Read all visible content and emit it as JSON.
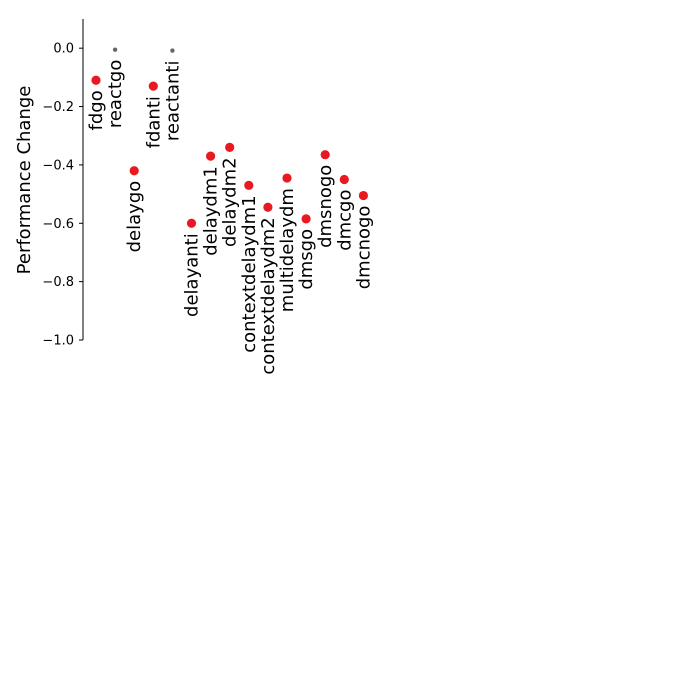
{
  "chart_data": {
    "type": "scatter",
    "title": "",
    "xlabel": "",
    "ylabel": "Performance Change",
    "ylim": [
      -1.0,
      0.1
    ],
    "yticks": [
      0.0,
      -0.2,
      -0.4,
      -0.6,
      -0.8,
      -1.0
    ],
    "ytick_labels": [
      "0.0",
      "−0.2",
      "−0.4",
      "−0.6",
      "−0.8",
      "−1.0"
    ],
    "grid": false,
    "colors": {
      "significant": "#e8191f",
      "non_significant": "#666666"
    },
    "points": [
      {
        "label": "fdgo",
        "y": -0.11,
        "significant": true
      },
      {
        "label": "reactgo",
        "y": -0.005,
        "significant": false
      },
      {
        "label": "delaygo",
        "y": -0.42,
        "significant": true
      },
      {
        "label": "fdanti",
        "y": -0.13,
        "significant": true
      },
      {
        "label": "reactanti",
        "y": -0.008,
        "significant": false
      },
      {
        "label": "delayanti",
        "y": -0.6,
        "significant": true
      },
      {
        "label": "delaydm1",
        "y": -0.37,
        "significant": true
      },
      {
        "label": "delaydm2",
        "y": -0.34,
        "significant": true
      },
      {
        "label": "contextdelaydm1",
        "y": -0.47,
        "significant": true
      },
      {
        "label": "contextdelaydm2",
        "y": -0.545,
        "significant": true
      },
      {
        "label": "multidelaydm",
        "y": -0.445,
        "significant": true
      },
      {
        "label": "dmsgo",
        "y": -0.585,
        "significant": true
      },
      {
        "label": "dmsnogo",
        "y": -0.365,
        "significant": true
      },
      {
        "label": "dmcgo",
        "y": -0.45,
        "significant": true
      },
      {
        "label": "dmcnogo",
        "y": -0.505,
        "significant": true
      }
    ]
  }
}
